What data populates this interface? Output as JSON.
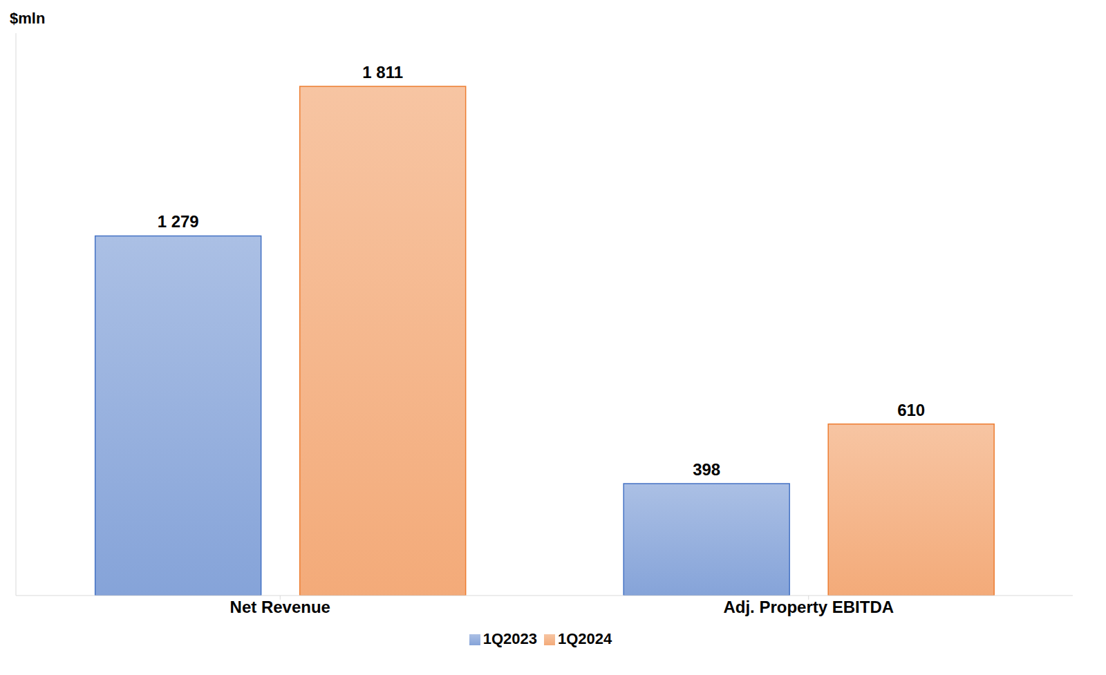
{
  "chart_data": {
    "type": "bar",
    "ylabel": "$mln",
    "categories": [
      "Net Revenue",
      "Adj. Property EBITDA"
    ],
    "series": [
      {
        "name": "1Q2023",
        "color": "#4472c4",
        "values": [
          1279,
          398
        ],
        "value_labels": [
          "1 279",
          "398"
        ]
      },
      {
        "name": "1Q2024",
        "color": "#ed7d31",
        "values": [
          1811,
          610
        ],
        "value_labels": [
          "1 811",
          "610"
        ]
      }
    ],
    "ylim": [
      0,
      2000
    ],
    "grid": false,
    "legend": "bottom",
    "data_labels": true,
    "tick_labels": "x"
  }
}
